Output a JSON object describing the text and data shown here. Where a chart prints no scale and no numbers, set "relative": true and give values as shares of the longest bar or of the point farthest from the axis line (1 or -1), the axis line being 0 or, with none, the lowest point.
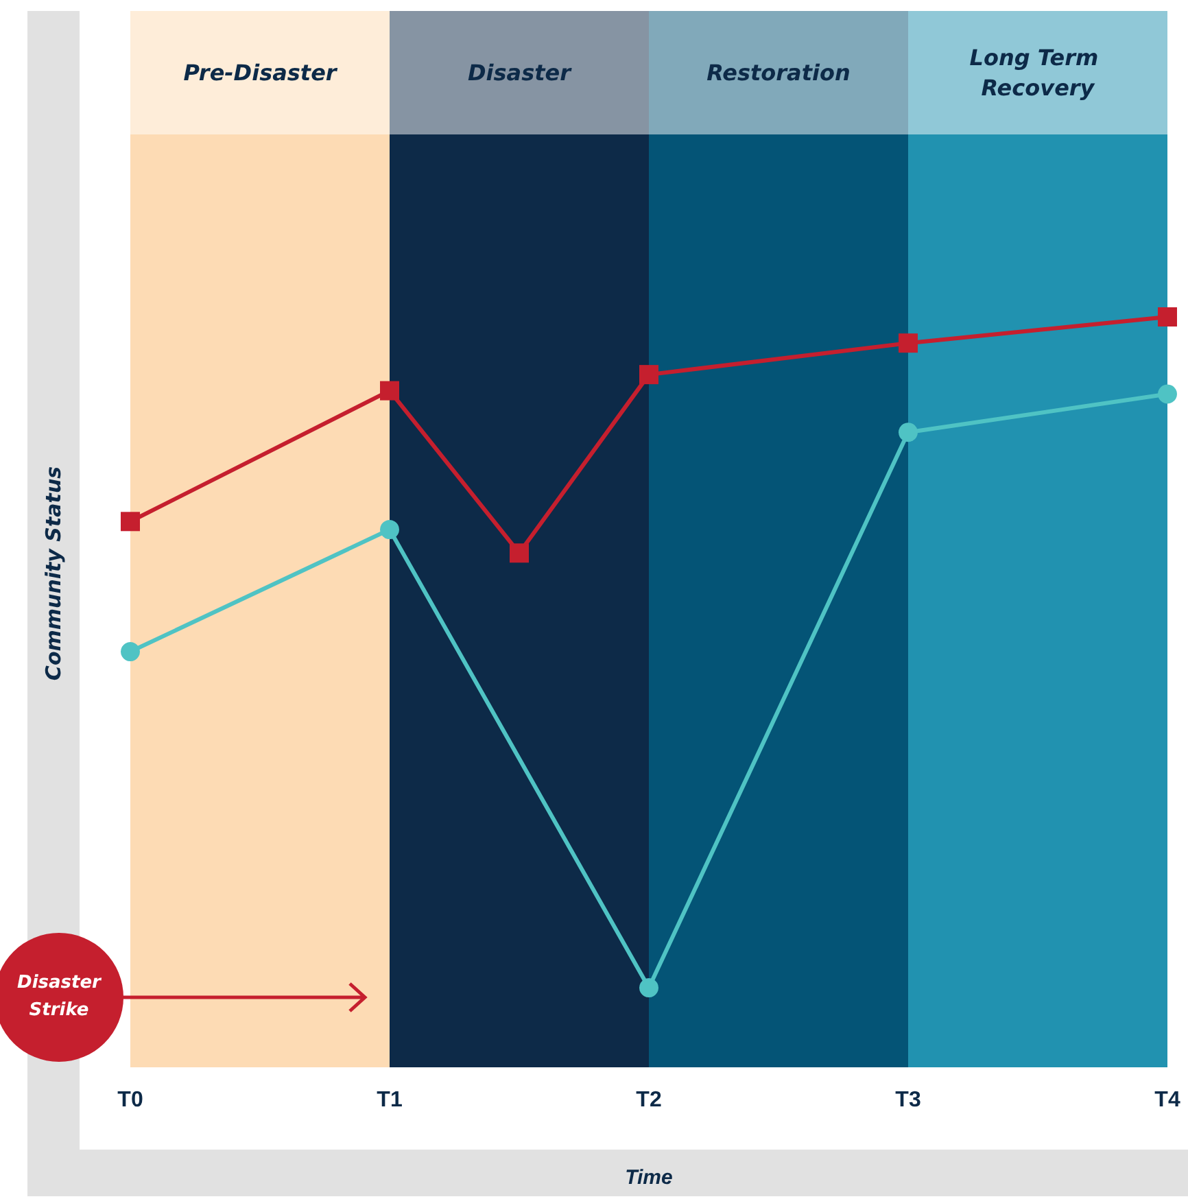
{
  "chart_data": {
    "type": "line",
    "relative": true,
    "xlabel": "Time",
    "ylabel": "Community Status",
    "categories": [
      "T0",
      null,
      "T1",
      null,
      "T2",
      null,
      "T3",
      null,
      "T4"
    ],
    "series": [
      {
        "color": "#c51f2e",
        "marker": "square",
        "values": [
          0.695,
          null,
          0.89,
          0.648,
          0.914,
          null,
          0.961,
          null,
          1
        ]
      },
      {
        "color": "#4fc3c4",
        "marker": "circle",
        "values": [
          0.501,
          null,
          0.683,
          null,
          0,
          null,
          0.828,
          null,
          0.885
        ]
      }
    ],
    "bands": [
      {
        "axis": "x",
        "from": "T0",
        "to": "T1",
        "label": "Pre-Disaster",
        "color": "#fddbb4"
      },
      {
        "axis": "x",
        "from": "T1",
        "to": "T2",
        "label": "Disaster",
        "color": "#0d2a48"
      },
      {
        "axis": "x",
        "from": "T2",
        "to": "T3",
        "label": "Restoration",
        "color": "#045476"
      },
      {
        "axis": "x",
        "from": "T3",
        "to": "T4",
        "label": "Long Term Recovery",
        "color": "#2192b0"
      }
    ],
    "annotations": [
      "Disaster Strike"
    ],
    "grid": false
  }
}
